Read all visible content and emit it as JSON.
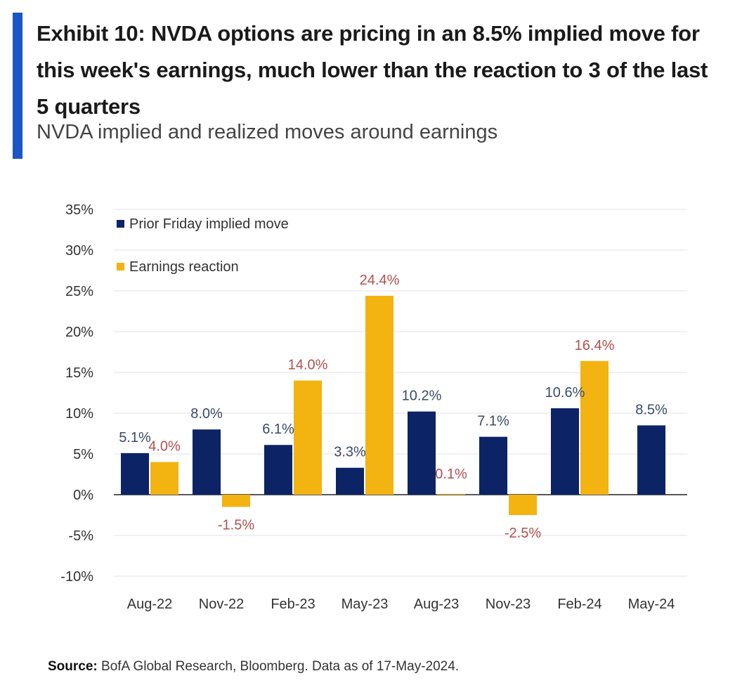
{
  "header": {
    "title": "Exhibit 10: NVDA options are pricing in an 8.5% implied move for this week's earnings, much lower than the reaction to 3 of the last 5 quarters",
    "subtitle": "NVDA implied and realized moves around earnings",
    "accent_color": "#1a56c4"
  },
  "footer": {
    "source_label": "Source:",
    "source_text": "BofA Global Research, Bloomberg. Data as of 17-May-2024."
  },
  "chart_data": {
    "type": "bar",
    "title": "NVDA implied and realized moves around earnings",
    "xlabel": "",
    "ylabel": "",
    "ylim": [
      -10,
      35
    ],
    "y_ticks": [
      35,
      30,
      25,
      20,
      15,
      10,
      5,
      0,
      -5,
      -10
    ],
    "y_tick_labels": [
      "35%",
      "30%",
      "25%",
      "20%",
      "15%",
      "10%",
      "5%",
      "0%",
      "-5%",
      "-10%"
    ],
    "grid": true,
    "legend_position": "top-left",
    "categories": [
      "Aug-22",
      "Nov-22",
      "Feb-23",
      "May-23",
      "Aug-23",
      "Nov-23",
      "Feb-24",
      "May-24"
    ],
    "series": [
      {
        "name": "Prior Friday implied move",
        "color": "#0c2366",
        "label_color": "#3a4a6a",
        "values": [
          5.1,
          8.0,
          6.1,
          3.3,
          10.2,
          7.1,
          10.6,
          8.5
        ],
        "labels": [
          "5.1%",
          "8.0%",
          "6.1%",
          "3.3%",
          "10.2%",
          "7.1%",
          "10.6%",
          "8.5%"
        ]
      },
      {
        "name": "Earnings reaction",
        "color": "#f3b311",
        "label_color": "#b2504e",
        "values": [
          4.0,
          -1.5,
          14.0,
          24.4,
          0.1,
          -2.5,
          16.4,
          null
        ],
        "labels": [
          "4.0%",
          "-1.5%",
          "14.0%",
          "24.4%",
          "0.1%",
          "-2.5%",
          "16.4%",
          ""
        ]
      }
    ]
  }
}
